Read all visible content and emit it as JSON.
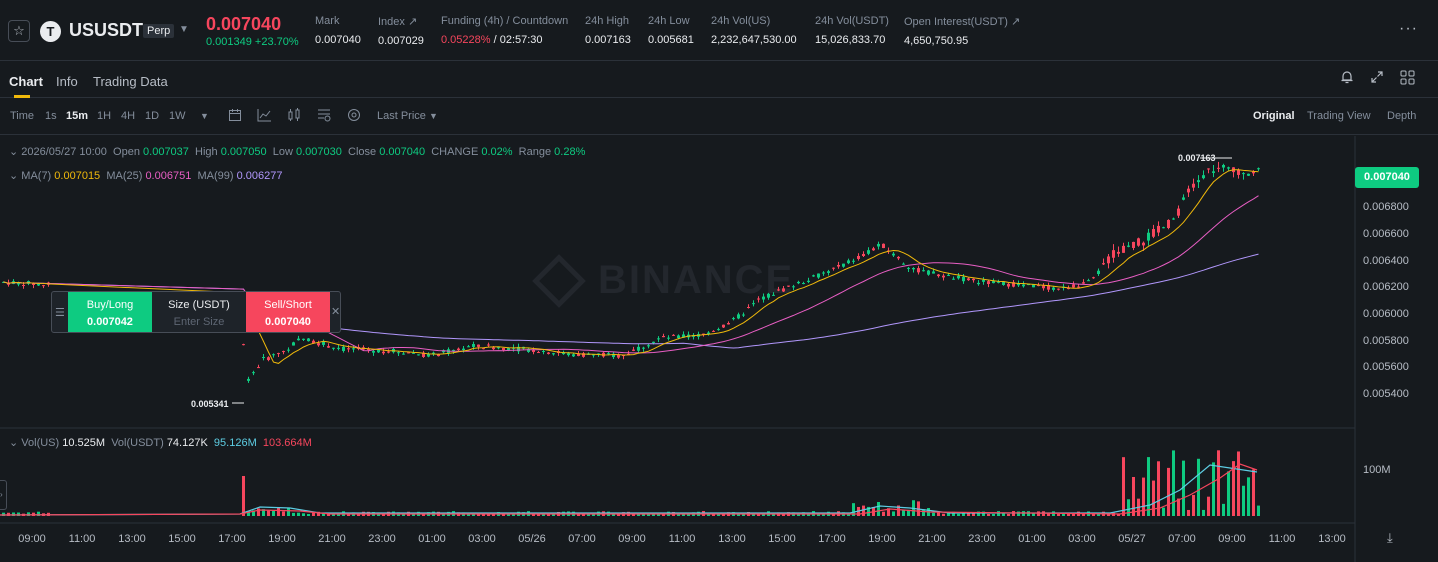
{
  "header": {
    "symbol": "USUSDT",
    "contract": "Perp",
    "last_price": "0.007040",
    "change": "0.001349 +23.70%",
    "stats": [
      {
        "label": "Mark",
        "value": "0.007040"
      },
      {
        "label": "Index ↗",
        "value": "0.007029"
      },
      {
        "label": "Funding (4h) / Countdown",
        "value_red": "0.05228%",
        "value": " / 02:57:30"
      },
      {
        "label": "24h High",
        "value": "0.007163"
      },
      {
        "label": "24h Low",
        "value": "0.005681"
      },
      {
        "label": "24h Vol(US)",
        "value": "2,232,647,530.00"
      },
      {
        "label": "24h Vol(USDT)",
        "value": "15,026,833.70"
      },
      {
        "label": "Open Interest(USDT) ↗",
        "value": "4,650,750.95"
      }
    ]
  },
  "tabs": [
    "Chart",
    "Info",
    "Trading Data"
  ],
  "toolbar": {
    "intervals": [
      "Time",
      "1s",
      "15m",
      "1H",
      "4H",
      "1D",
      "1W"
    ],
    "active_interval": "15m",
    "price_type": "Last Price",
    "views": [
      "Original",
      "Trading View",
      "Depth"
    ],
    "active_view": "Original"
  },
  "legend": {
    "date": "2026/05/27 10:00",
    "open_label": "Open",
    "open": "0.007037",
    "high_label": "High",
    "high": "0.007050",
    "low_label": "Low",
    "low": "0.007030",
    "close_label": "Close",
    "close": "0.007040",
    "change_label": "CHANGE",
    "change": "0.02%",
    "range_label": "Range",
    "range": "0.28%",
    "ma7_label": "MA(7)",
    "ma7": "0.007015",
    "ma25_label": "MA(25)",
    "ma25": "0.006751",
    "ma99_label": "MA(99)",
    "ma99": "0.006277",
    "vol_label": "Vol(US)",
    "vol": "10.525M",
    "volusdt_label": "Vol(USDT)",
    "volusdt": "74.127K",
    "volma1": "95.126M",
    "volma2": "103.664M"
  },
  "order_widget": {
    "buy_label": "Buy/Long",
    "buy_price": "0.007042",
    "size_label": "Size (USDT)",
    "size_placeholder": "Enter Size",
    "sell_label": "Sell/Short",
    "sell_price": "0.007040"
  },
  "markers": {
    "high": "0.007163",
    "low": "0.005341"
  },
  "current_price_tag": "0.007040",
  "watermark": "BINANCE",
  "price_axis": [
    "0.006800",
    "0.006600",
    "0.006400",
    "0.006200",
    "0.006000",
    "0.005800",
    "0.005600",
    "0.005400"
  ],
  "volume_axis": [
    "100M"
  ],
  "time_axis": [
    "09:00",
    "11:00",
    "13:00",
    "15:00",
    "17:00",
    "19:00",
    "21:00",
    "23:00",
    "01:00",
    "03:00",
    "05/26",
    "07:00",
    "09:00",
    "11:00",
    "13:00",
    "15:00",
    "17:00",
    "19:00",
    "21:00",
    "23:00",
    "01:00",
    "03:00",
    "05/27",
    "07:00",
    "09:00",
    "11:00",
    "13:00"
  ],
  "colors": {
    "up": "#0ecb81",
    "down": "#f6465d",
    "ma7": "#f0b90b",
    "ma25": "#e85ec4",
    "ma99": "#b197fc",
    "vol_ma": "#5dcde3"
  }
}
